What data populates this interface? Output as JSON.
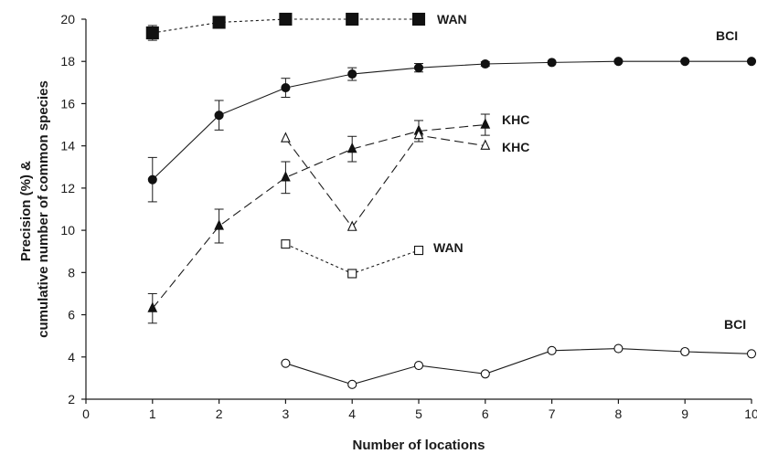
{
  "chart_data": {
    "type": "line",
    "xlabel": "Number of locations",
    "ylabel_lines": [
      "Precision (%) &",
      "cumulative number of common species"
    ],
    "xlim": [
      0,
      10
    ],
    "ylim": [
      2,
      20
    ],
    "x_ticks": [
      0,
      1,
      2,
      3,
      4,
      5,
      6,
      7,
      8,
      9,
      10
    ],
    "y_ticks": [
      2,
      4,
      6,
      8,
      10,
      12,
      14,
      16,
      18,
      20
    ],
    "x_tick_labels": [
      "0",
      "1",
      "2",
      "3",
      "4",
      "5",
      "6",
      "7",
      "8",
      "9",
      "10"
    ],
    "y_tick_labels": [
      "2",
      "4",
      "6",
      "8",
      "10",
      "12",
      "14",
      "16",
      "18",
      "20"
    ],
    "grid": false,
    "series": [
      {
        "name": "WAN",
        "marker": "square-filled",
        "line": "short-dash",
        "x": [
          1,
          2,
          3,
          4,
          5
        ],
        "y": [
          19.35,
          19.85,
          20.0,
          20.0,
          20.0
        ],
        "err": [
          0.35,
          0.1,
          0,
          0,
          0
        ]
      },
      {
        "name": "BCI",
        "marker": "circle-filled",
        "line": "solid",
        "x": [
          1,
          2,
          3,
          4,
          5,
          6,
          7,
          8,
          9,
          10
        ],
        "y": [
          12.4,
          15.45,
          16.75,
          17.4,
          17.7,
          17.88,
          17.95,
          18.0,
          18.0,
          18.0
        ],
        "err": [
          1.05,
          0.7,
          0.45,
          0.3,
          0.2,
          0.1,
          0,
          0,
          0,
          0
        ]
      },
      {
        "name": "KHC",
        "marker": "triangle-filled",
        "line": "long-dash",
        "x": [
          1,
          2,
          3,
          4,
          5,
          6
        ],
        "y": [
          6.3,
          10.2,
          12.5,
          13.85,
          14.7,
          15.0
        ],
        "err": [
          0.7,
          0.8,
          0.75,
          0.6,
          0.5,
          0.5
        ]
      },
      {
        "name": "KHC",
        "marker": "triangle-open",
        "line": "long-dash",
        "x": [
          3,
          4,
          5,
          6
        ],
        "y": [
          14.35,
          10.15,
          14.5,
          14.0
        ],
        "err": []
      },
      {
        "name": "WAN",
        "marker": "square-open",
        "line": "short-dash",
        "x": [
          3,
          4,
          5
        ],
        "y": [
          9.35,
          7.95,
          9.05
        ],
        "err": []
      },
      {
        "name": "BCI",
        "marker": "circle-open",
        "line": "solid",
        "x": [
          3,
          4,
          5,
          6,
          7,
          8,
          9,
          10
        ],
        "y": [
          3.7,
          2.7,
          3.6,
          3.2,
          4.3,
          4.4,
          4.25,
          4.15
        ],
        "err": []
      }
    ]
  }
}
